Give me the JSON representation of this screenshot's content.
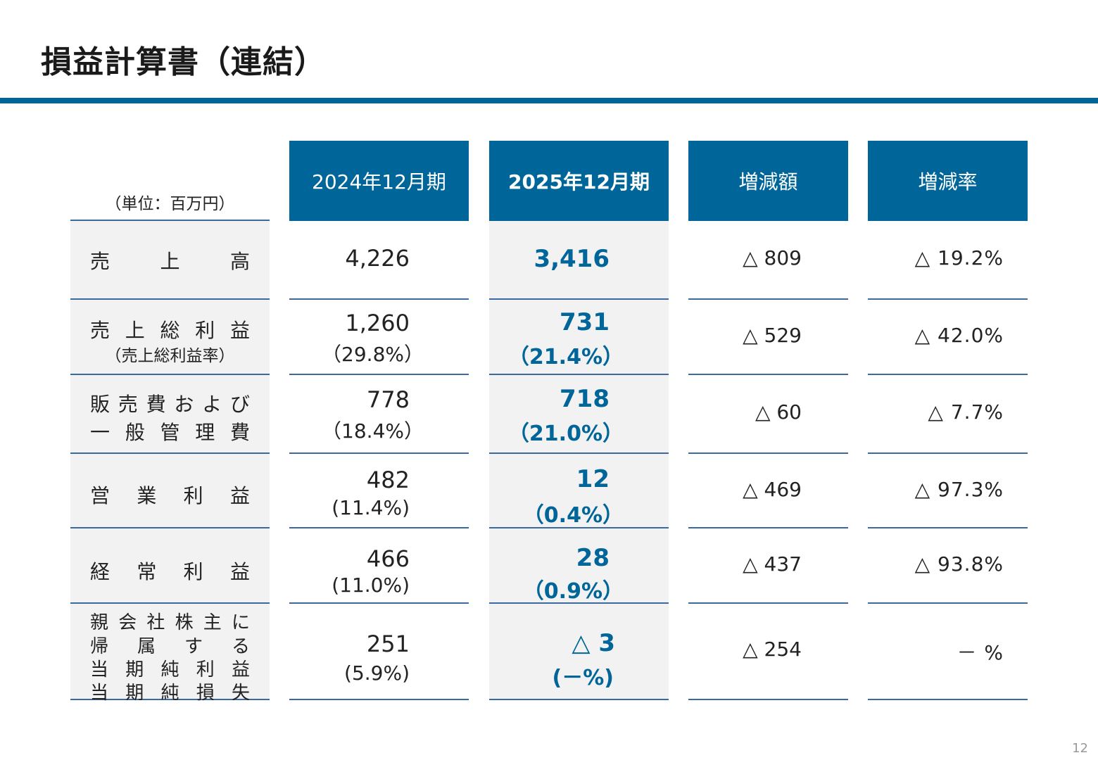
{
  "title": "損益計算書（連結）",
  "unit": "（単位：百万円）",
  "columns": {
    "c2024": "2024年12月期",
    "c2025": "2025年12月期",
    "diff": "増減額",
    "rate": "増減率"
  },
  "rows": [
    {
      "label": [
        "売",
        "上",
        "高"
      ],
      "sub": "",
      "v2024": "4,226",
      "p2024": "",
      "v2025": "3,416",
      "p2025": "",
      "diff": "△ 809",
      "rate": "△ 19.2%"
    },
    {
      "label": [
        "売",
        "上",
        "総",
        "利",
        "益"
      ],
      "sub": "（売上総利益率）",
      "v2024": "1,260",
      "p2024": "（29.8%）",
      "v2025": "731",
      "p2025": "（21.4%）",
      "diff": "△ 529",
      "rate": "△ 42.0%"
    },
    {
      "label": [
        "販",
        "売",
        "費",
        "お",
        "よ",
        "び"
      ],
      "label2": [
        "一",
        "般",
        "管",
        "理",
        "費"
      ],
      "sub": "",
      "v2024": "778",
      "p2024": "（18.4%）",
      "v2025": "718",
      "p2025": "（21.0%）",
      "diff": "△ 60",
      "rate": "△ 7.7%"
    },
    {
      "label": [
        "営",
        "業",
        "利",
        "益"
      ],
      "sub": "",
      "v2024": "482",
      "p2024": "(11.4%)",
      "v2025": "12",
      "p2025": "（0.4%）",
      "diff": "△ 469",
      "rate": "△ 97.3%"
    },
    {
      "label": [
        "経",
        "常",
        "利",
        "益"
      ],
      "sub": "",
      "v2024": "466",
      "p2024": "(11.0%)",
      "v2025": "28",
      "p2025": "（0.9%）",
      "diff": "△ 437",
      "rate": "△ 93.8%"
    },
    {
      "lines": [
        [
          "親",
          "会",
          "社",
          "株",
          "主",
          "に"
        ],
        [
          "帰",
          "属",
          "す",
          "る"
        ],
        [
          "当",
          "期",
          "純",
          "利",
          "益"
        ],
        [
          "当",
          "期",
          "純",
          "損",
          "失"
        ]
      ],
      "v2024": "251",
      "p2024": "(5.9%)",
      "v2025": "△ 3",
      "p2025": "(－%)",
      "diff": "△ 254",
      "rate": "－ %"
    }
  ],
  "page_number": "12",
  "colors": {
    "accent": "#006699",
    "row_label_bg": "#f2f2f2",
    "rule": "#3b6aa0"
  }
}
